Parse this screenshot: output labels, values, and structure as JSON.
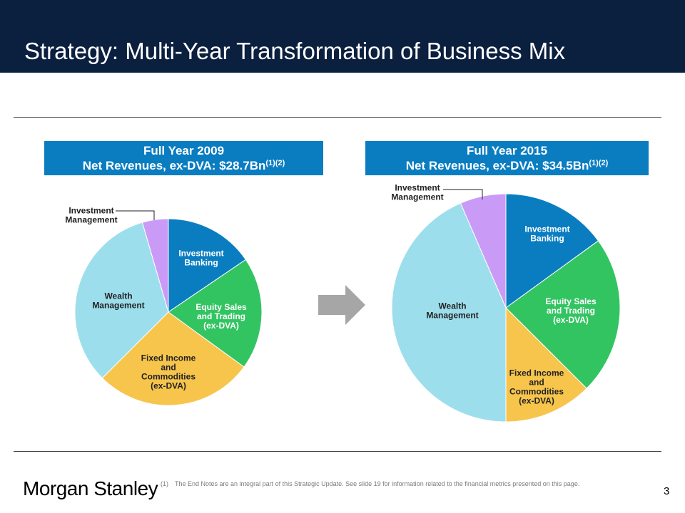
{
  "page": {
    "title": "Strategy: Multi-Year Transformation of Business Mix",
    "logo_text": "Morgan Stanley",
    "footnote_number": "(1)",
    "footnote_text": "The End Notes are an integral part of this Strategic Update. See slide 19 for information related to the financial metrics presented on this page.",
    "page_number": "3"
  },
  "colors": {
    "header_band": "#0b1f3f",
    "chart_header": "#0a7dc1",
    "arrow": "#a6a6a6"
  },
  "chart_data": [
    {
      "type": "pie",
      "title_line1": "Full Year 2009",
      "title_line2": "Net Revenues, ex-DVA:  $28.7Bn",
      "title_sup": "(1)(2)",
      "start": "12 o'clock, clockwise",
      "slices": [
        {
          "name": "Investment Banking",
          "value": 15.5,
          "color": "#0a7dc1",
          "label_color": "#ffffff",
          "lines": [
            "Investment",
            "Banking"
          ]
        },
        {
          "name": "Equity Sales and Trading (ex-DVA)",
          "value": 19.5,
          "color": "#33c462",
          "label_color": "#ffffff",
          "lines": [
            "Equity Sales",
            "and Trading",
            "(ex-DVA)"
          ]
        },
        {
          "name": "Fixed Income and Commodities (ex-DVA)",
          "value": 27.5,
          "color": "#f7c54b",
          "label_color": "#222222",
          "lines": [
            "Fixed Income",
            "and",
            "Commodities",
            "(ex-DVA)"
          ]
        },
        {
          "name": "Wealth Management",
          "value": 33.0,
          "color": "#9ddeed",
          "label_color": "#222222",
          "lines": [
            "Wealth",
            "Management"
          ]
        },
        {
          "name": "Investment Management",
          "value": 4.5,
          "color": "#c99bf7",
          "label_color": "#222222",
          "lines": [
            "Investment",
            "Management"
          ],
          "callout": true
        }
      ]
    },
    {
      "type": "pie",
      "title_line1": "Full Year 2015",
      "title_line2": "Net Revenues, ex-DVA: $34.5Bn",
      "title_sup": "(1)(2)",
      "start": "12 o'clock, clockwise",
      "slices": [
        {
          "name": "Investment Banking",
          "value": 15.0,
          "color": "#0a7dc1",
          "label_color": "#ffffff",
          "lines": [
            "Investment",
            "Banking"
          ]
        },
        {
          "name": "Equity Sales and Trading (ex-DVA)",
          "value": 22.5,
          "color": "#33c462",
          "label_color": "#ffffff",
          "lines": [
            "Equity Sales",
            "and Trading",
            "(ex-DVA)"
          ]
        },
        {
          "name": "Fixed Income and Commodities (ex-DVA)",
          "value": 12.5,
          "color": "#f7c54b",
          "label_color": "#222222",
          "lines": [
            "Fixed Income",
            "and",
            "Commodities",
            "(ex-DVA)"
          ]
        },
        {
          "name": "Wealth Management",
          "value": 43.5,
          "color": "#9ddeed",
          "label_color": "#222222",
          "lines": [
            "Wealth",
            "Management"
          ]
        },
        {
          "name": "Investment Management",
          "value": 6.5,
          "color": "#c99bf7",
          "label_color": "#222222",
          "lines": [
            "Investment",
            "Management"
          ],
          "callout": true
        }
      ]
    }
  ]
}
